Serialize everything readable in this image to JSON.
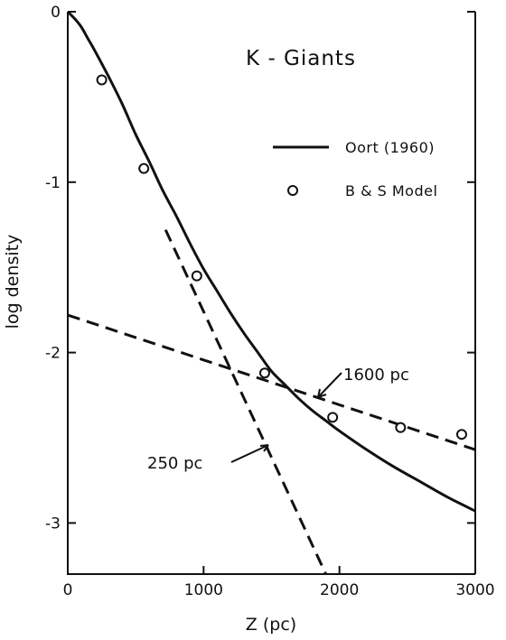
{
  "chart_data": {
    "type": "line",
    "title": "K - Giants",
    "xlabel": "Z (pc)",
    "ylabel": "log density",
    "xlim": [
      0,
      3000
    ],
    "ylim": [
      -3.3,
      0
    ],
    "x_ticks": [
      0,
      1000,
      2000,
      3000
    ],
    "x_tick_labels": [
      "0",
      "1000",
      "2000",
      "3000"
    ],
    "y_ticks": [
      0,
      -1,
      -2,
      -3
    ],
    "y_tick_labels": [
      "0",
      "-1",
      "-2",
      "-3"
    ],
    "legend_position": "top-right",
    "series": [
      {
        "name": "Oort (1960)",
        "style": "solid",
        "x": [
          0,
          50,
          100,
          150,
          200,
          300,
          400,
          500,
          600,
          700,
          800,
          900,
          1000,
          1100,
          1200,
          1300,
          1400,
          1500,
          1600,
          1700,
          1800,
          1900,
          2000,
          2200,
          2400,
          2600,
          2800,
          3000
        ],
        "y": [
          0,
          -0.04,
          -0.09,
          -0.16,
          -0.23,
          -0.38,
          -0.54,
          -0.72,
          -0.88,
          -1.05,
          -1.2,
          -1.36,
          -1.51,
          -1.64,
          -1.77,
          -1.89,
          -2.0,
          -2.11,
          -2.19,
          -2.27,
          -2.34,
          -2.4,
          -2.46,
          -2.57,
          -2.67,
          -2.76,
          -2.85,
          -2.93
        ]
      },
      {
        "name": "B & S Model",
        "style": "markers",
        "x": [
          250,
          560,
          950,
          1450,
          1950,
          2450,
          2900
        ],
        "y": [
          -0.4,
          -0.92,
          -1.55,
          -2.12,
          -2.38,
          -2.44,
          -2.48
        ]
      },
      {
        "name": "",
        "style": "dashed",
        "x": [
          720,
          1900
        ],
        "y": [
          -1.28,
          -3.3
        ]
      },
      {
        "name": "",
        "style": "dashed",
        "x": [
          0,
          3000
        ],
        "y": [
          -1.78,
          -2.57
        ]
      }
    ],
    "annotations": [
      {
        "text": "1600 pc",
        "anchor_x": 1800,
        "anchor_y": -2.24
      },
      {
        "text": "250 pc",
        "anchor_x": 1450,
        "anchor_y": -2.6
      }
    ]
  }
}
